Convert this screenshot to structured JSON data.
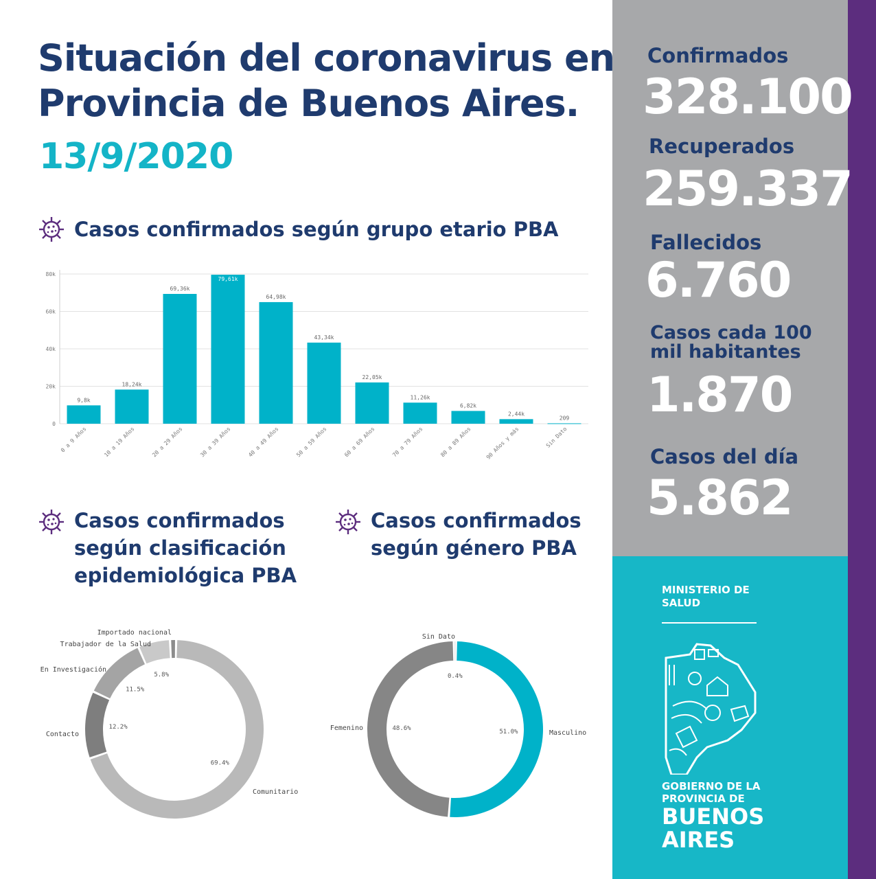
{
  "header": {
    "title_line1": "Situación del coronavirus en",
    "title_line2": "Provincia de Buenos Aires.",
    "date": "13/9/2020"
  },
  "sections": {
    "age": "Casos confirmados según grupo etario PBA",
    "epi_line1": "Casos confirmados",
    "epi_line2": "según clasificación",
    "epi_line3": "epidemiológica PBA",
    "gender_line1": "Casos confirmados",
    "gender_line2": "según género PBA"
  },
  "stats": {
    "confirmados_label": "Confirmados",
    "confirmados_value": "328.100",
    "recuperados_label": "Recuperados",
    "recuperados_value": "259.337",
    "fallecidos_label": "Fallecidos",
    "fallecidos_value": "6.760",
    "casos100_label_line1": "Casos cada 100",
    "casos100_label_line2": "mil habitantes",
    "casos100_value": "1.870",
    "casosdia_label": "Casos del día",
    "casosdia_value": "5.862"
  },
  "branding": {
    "ministerio_line1": "MINISTERIO DE",
    "ministerio_line2": "SALUD",
    "gob_line1": "GOBIERNO DE LA",
    "gob_line2": "PROVINCIA DE",
    "ba_line1": "BUENOS",
    "ba_line2": "AIRES"
  },
  "colors": {
    "navy": "#1f3b6e",
    "teal": "#14b4c7",
    "bar": "#00b2c9",
    "sidebar_gray": "#a7a8aa",
    "sidebar_teal": "#17b7c7",
    "purple": "#5c2d7e"
  },
  "chart_data": [
    {
      "type": "bar",
      "title": "Casos confirmados según grupo etario PBA",
      "categories": [
        "0 a 9 Años",
        "10 a 19 Años",
        "20 a 29 Años",
        "30 a 39 Años",
        "40 a 49 Años",
        "50 a 59 Años",
        "60 a 69 Años",
        "70 a 79 Años",
        "80 a 89 Años",
        "90 Años y más",
        "Sin Dato"
      ],
      "values": [
        9800,
        18240,
        69360,
        79610,
        64980,
        43340,
        22050,
        11260,
        6820,
        2440,
        209
      ],
      "value_labels": [
        "9,8k",
        "18,24k",
        "69,36k",
        "79,61k",
        "64,98k",
        "43,34k",
        "22,05k",
        "11,26k",
        "6,82k",
        "2,44k",
        "209"
      ],
      "y_ticks": [
        0,
        20000,
        40000,
        60000,
        80000
      ],
      "y_tick_labels": [
        "0",
        "20k",
        "40k",
        "60k",
        "80k"
      ],
      "ylim": [
        0,
        80000
      ],
      "grid": true
    },
    {
      "type": "pie",
      "title": "Casos confirmados según clasificación epidemiológica PBA",
      "slices": [
        {
          "label": "Comunitario",
          "value": 69.4,
          "pct_label": "69.4%"
        },
        {
          "label": "Contacto",
          "value": 12.2,
          "pct_label": "12.2%"
        },
        {
          "label": "En Investigación",
          "value": 11.5,
          "pct_label": "11.5%"
        },
        {
          "label": "Trabajador de la Salud",
          "value": 5.8,
          "pct_label": "5.8%"
        },
        {
          "label": "Importado nacional",
          "value": 1.1,
          "pct_label": ""
        }
      ]
    },
    {
      "type": "pie",
      "title": "Casos confirmados según género PBA",
      "slices": [
        {
          "label": "Masculino",
          "value": 51.0,
          "pct_label": "51.0%"
        },
        {
          "label": "Femenino",
          "value": 48.6,
          "pct_label": "48.6%"
        },
        {
          "label": "Sin Dato",
          "value": 0.4,
          "pct_label": "0.4%"
        }
      ]
    }
  ]
}
